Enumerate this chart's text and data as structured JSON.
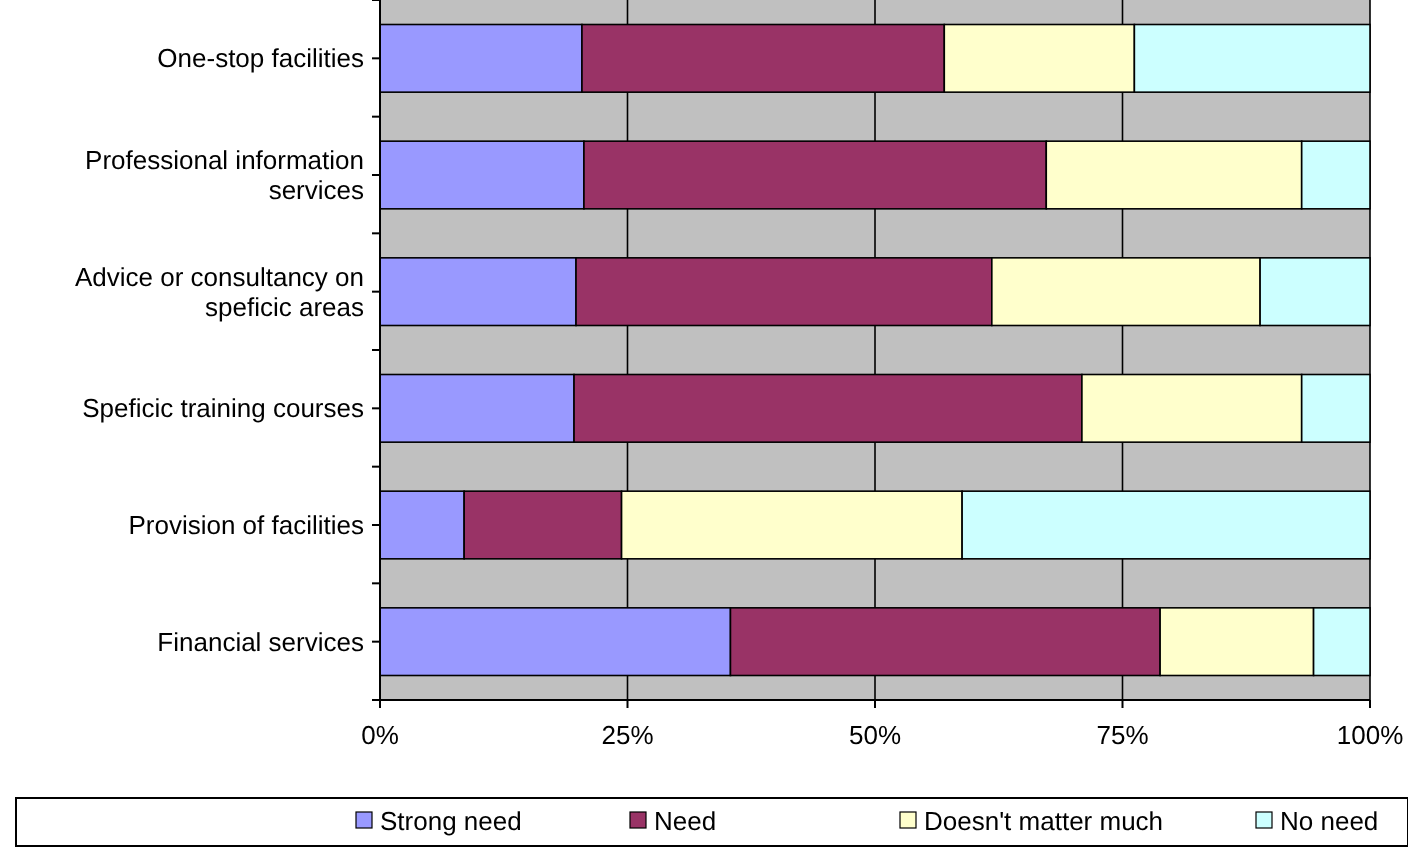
{
  "chart_data": {
    "type": "bar",
    "orientation": "horizontal",
    "stacked": true,
    "categories": [
      "One-stop facilities",
      "Professional information services",
      "Advice or consultancy on speficic areas",
      "Speficic training courses",
      "Provision of facilities",
      "Financial services"
    ],
    "series": [
      {
        "name": "Strong need",
        "color": "#9999ff",
        "values": [
          20.4,
          20.6,
          19.8,
          19.6,
          8.5,
          35.4
        ]
      },
      {
        "name": "Need",
        "color": "#993366",
        "values": [
          36.6,
          46.7,
          42.0,
          51.3,
          15.9,
          43.4
        ]
      },
      {
        "name": "Doesn't matter much",
        "color": "#ffffcc",
        "values": [
          19.2,
          25.8,
          27.1,
          22.2,
          34.4,
          15.5
        ]
      },
      {
        "name": "No need",
        "color": "#ccffff",
        "values": [
          23.8,
          6.9,
          11.1,
          6.9,
          41.2,
          5.7
        ]
      }
    ],
    "xlim": [
      0,
      100
    ],
    "xticks": [
      {
        "value": 0,
        "label": "0%"
      },
      {
        "value": 25,
        "label": "25%"
      },
      {
        "value": 50,
        "label": "50%"
      },
      {
        "value": 75,
        "label": "75%"
      },
      {
        "value": 100,
        "label": "100%"
      }
    ],
    "grid": "x",
    "legend": "bottom"
  }
}
